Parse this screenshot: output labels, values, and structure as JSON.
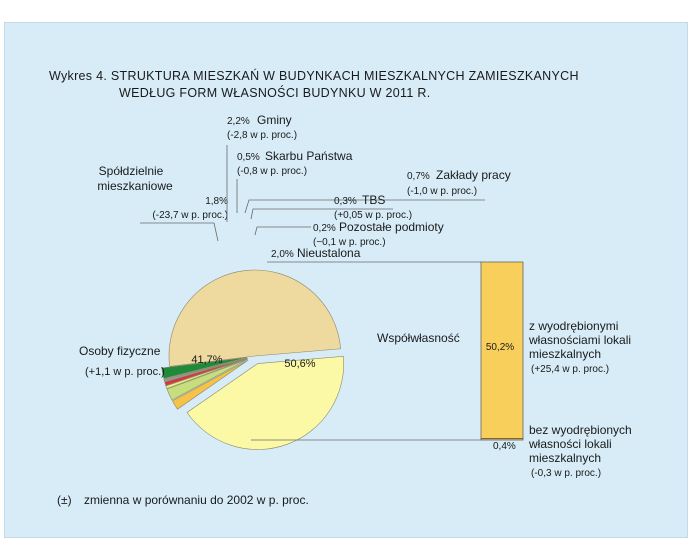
{
  "chart_data": {
    "type": "pie",
    "title_line1": "Wykres 4. STRUKTURA MIESZKAŃ W BUDYNKACH MIESZKALNYCH ZAMIESZKANYCH",
    "title_line2": "WEDŁUG FORM WŁASNOŚCI BUDYNKU W 2011 R.",
    "slices": [
      {
        "label": "Współwłasność",
        "value": 50.6,
        "value_label": "50,6%",
        "color": "#eed99f"
      },
      {
        "label": "Osoby fizyczne",
        "value": 41.7,
        "value_label": "41,7%",
        "change": "(+1,1 w p. proc.)",
        "color": "#fbf8a6"
      },
      {
        "label_line1": "Spółdzielnie",
        "label_line2": "mieszkaniowe",
        "value": 1.8,
        "value_label": "1,8%",
        "change": "(-23,7 w p. proc.)",
        "color": "#f5c24a"
      },
      {
        "label": "Gminy",
        "value": 2.2,
        "value_label": "2,2%",
        "change": "(-2,8 w p. proc.)",
        "color": "#c6df7c"
      },
      {
        "label": "Skarbu Państwa",
        "value": 0.5,
        "value_label": "0,5%",
        "change": "(-0,8 w p. proc.)",
        "color": "#f0ef88"
      },
      {
        "label": "Zakłady pracy",
        "value": 0.7,
        "value_label": "0,7%",
        "change": "(-1,0 w p. proc.)",
        "color": "#d6363c"
      },
      {
        "label": "TBS",
        "value": 0.3,
        "value_label": "0,3%",
        "change": "(+0,05 w p. proc.)",
        "color": "#9aa3cf"
      },
      {
        "label": "Pozostałe podmioty",
        "value": 0.2,
        "value_label": "0,2%",
        "change": "(−0,1 w p. proc.)",
        "color": "#a8a8a8"
      },
      {
        "label": "Nieustalona",
        "value": 2.0,
        "value_label": "2,0%",
        "color": "#1f8a3a"
      }
    ],
    "breakdown": {
      "parent": "Współwłasność",
      "bar_color": "#f9cf5c",
      "segments": [
        {
          "value": 50.2,
          "value_label": "50,2%",
          "label_lines": [
            "z wyodrębionymi",
            "własnościami lokali",
            "mieszkalnych"
          ],
          "change": "(+25,4 w p. proc.)"
        },
        {
          "value": 0.4,
          "value_label": "0,4%",
          "label_lines": [
            "bez wyodrębionych",
            "własności lokali",
            "mieszkalnych"
          ],
          "change": "(-0,3 w p. proc.)"
        }
      ]
    },
    "legend_note": {
      "symbol": "(±)",
      "text": "zmienna w porównaniu do 2002 w p. proc."
    }
  }
}
